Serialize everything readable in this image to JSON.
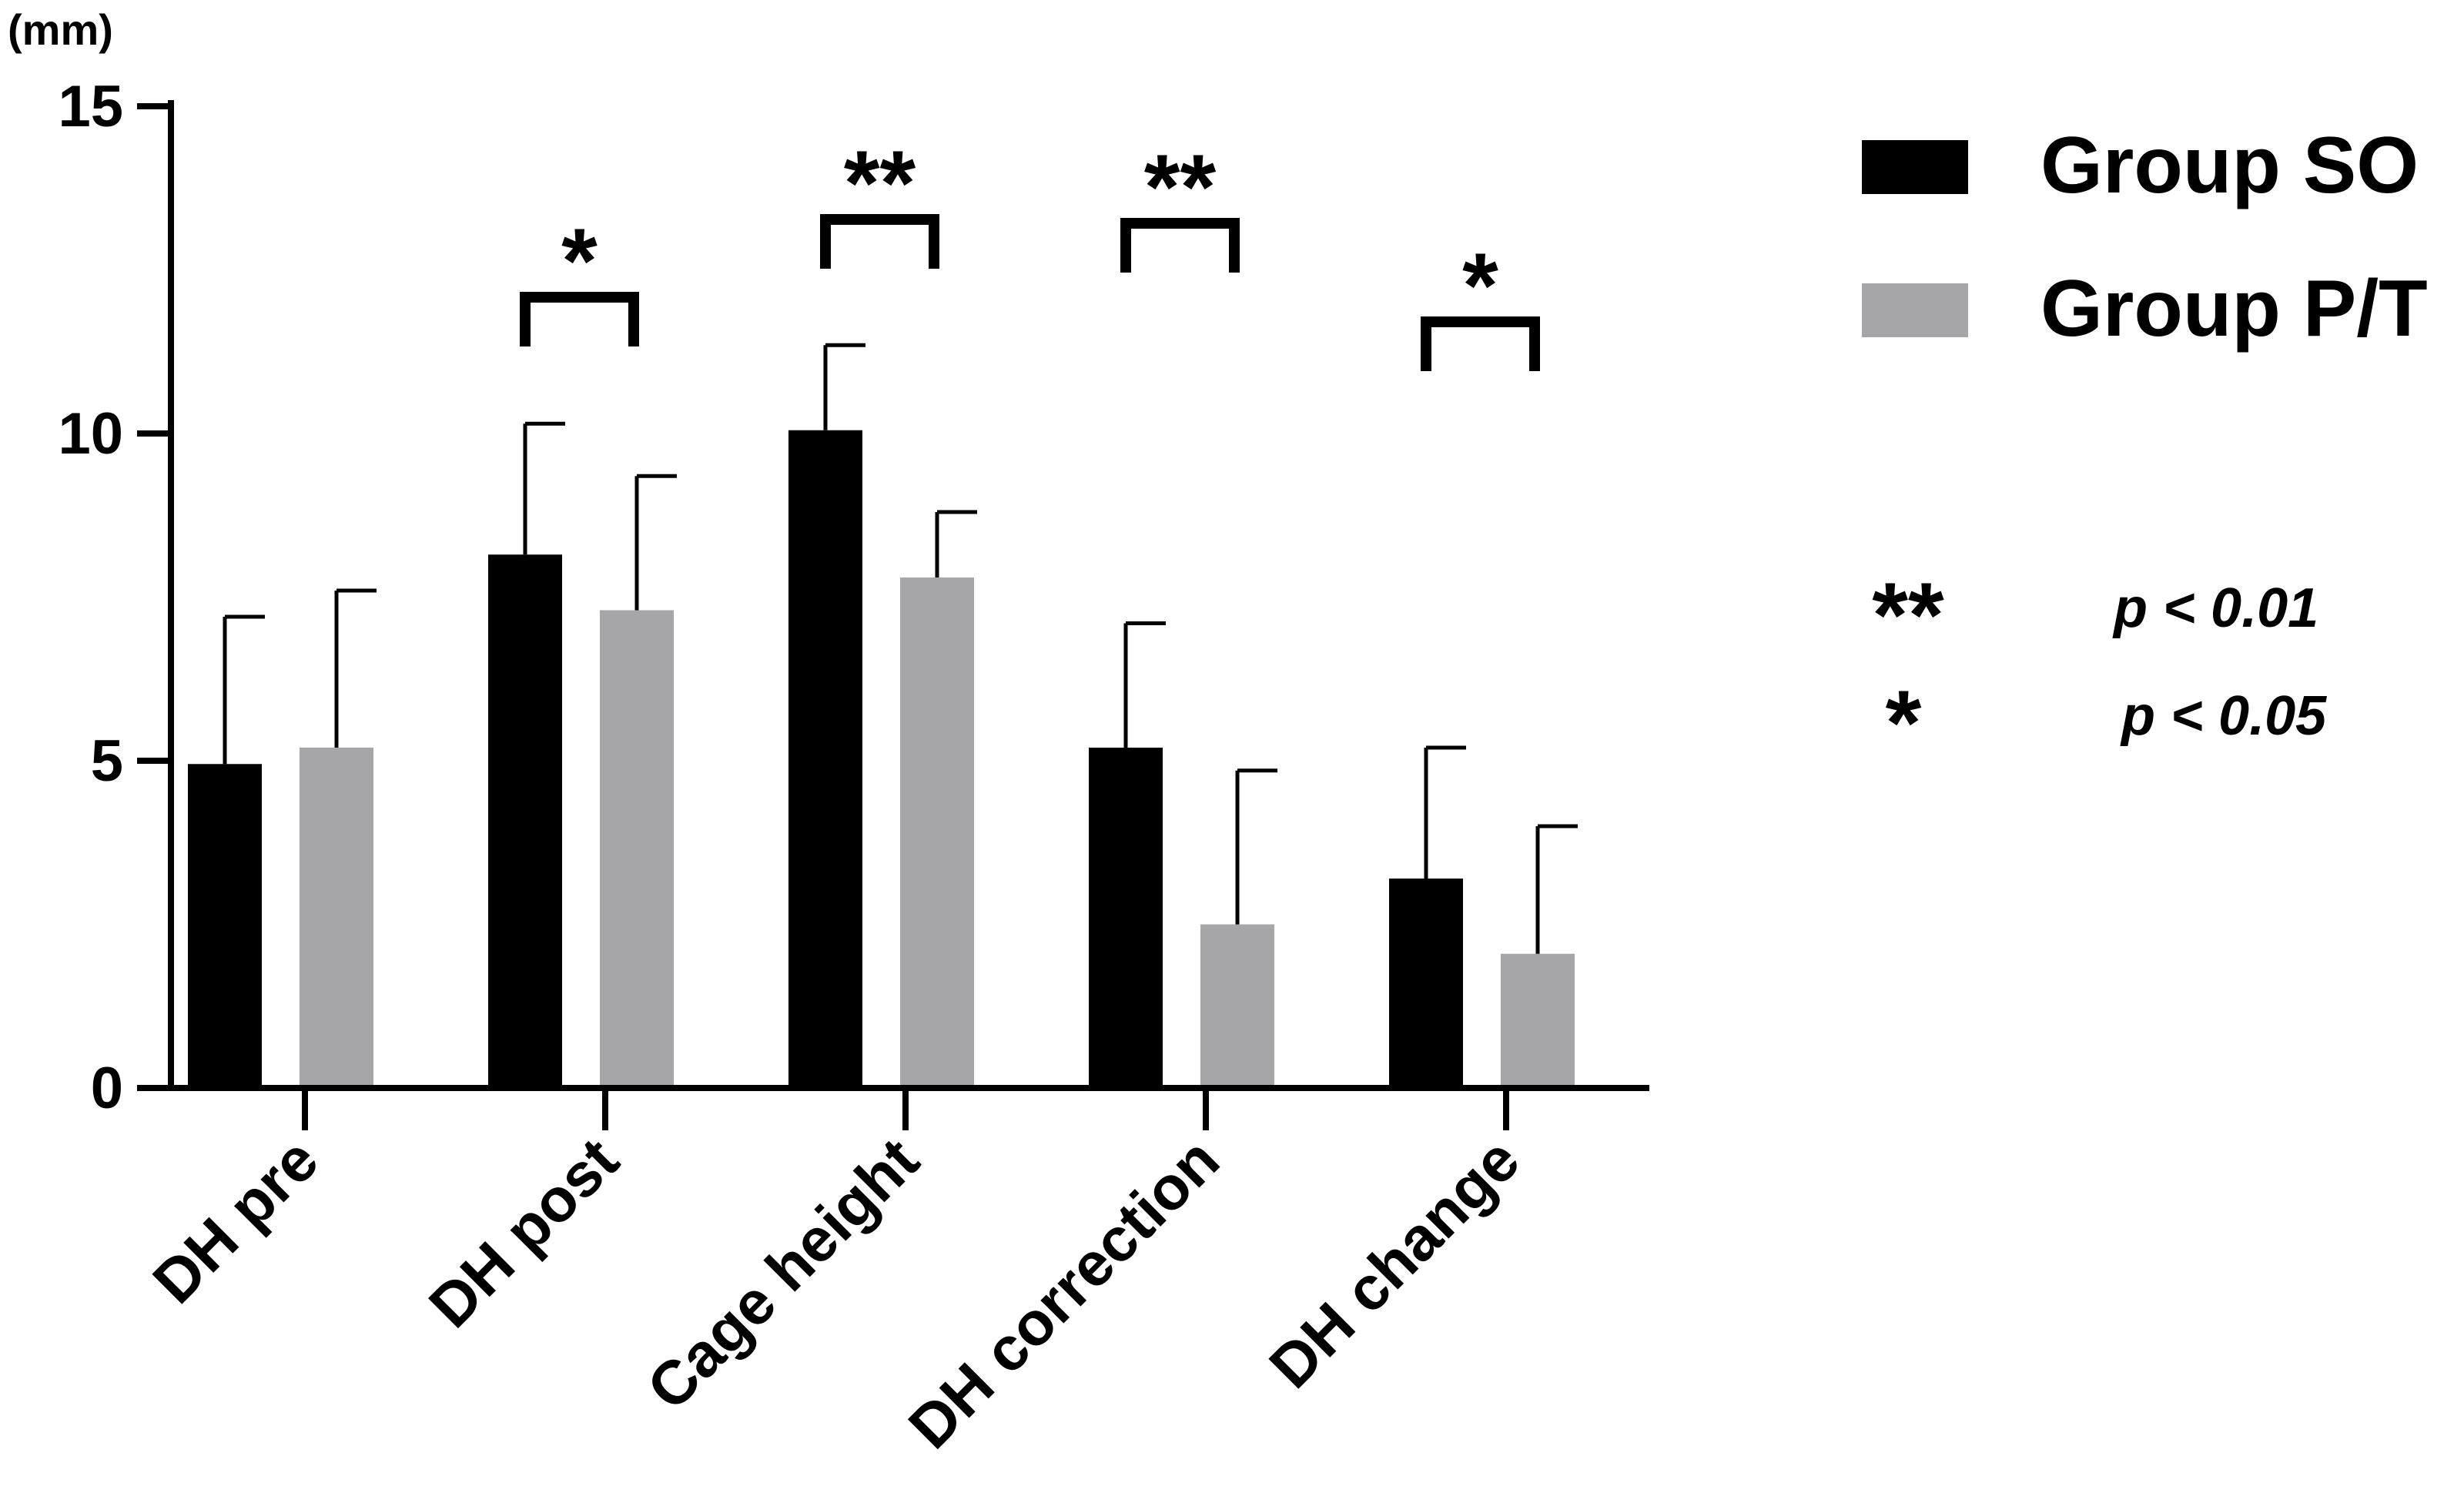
{
  "chart_data": {
    "type": "bar",
    "unit_label": "(mm)",
    "categories": [
      "DH pre",
      "DH post",
      "Cage height",
      "DH correction",
      "DH change"
    ],
    "series": [
      {
        "name": "Group SO",
        "color": "#000000",
        "values": [
          4.95,
          8.15,
          10.05,
          5.2,
          3.2
        ],
        "errors": [
          2.25,
          2.0,
          1.3,
          1.9,
          2.0
        ]
      },
      {
        "name": "Group P/T",
        "color": "#a6a6a8",
        "values": [
          5.2,
          7.3,
          7.8,
          2.5,
          2.05
        ],
        "errors": [
          2.4,
          2.05,
          1.0,
          2.35,
          1.95
        ]
      }
    ],
    "ylim": [
      0,
      15
    ],
    "yticks": [
      0,
      5,
      10,
      15
    ],
    "significance": [
      {
        "category": "DH post",
        "label": "*"
      },
      {
        "category": "Cage height",
        "label": "**"
      },
      {
        "category": "DH correction",
        "label": "**"
      },
      {
        "category": "DH change",
        "label": "*"
      }
    ],
    "significance_key": [
      {
        "symbol": "**",
        "text": "p < 0.01"
      },
      {
        "symbol": "*",
        "text": "p < 0.05"
      }
    ],
    "legend_position": "top-right"
  }
}
